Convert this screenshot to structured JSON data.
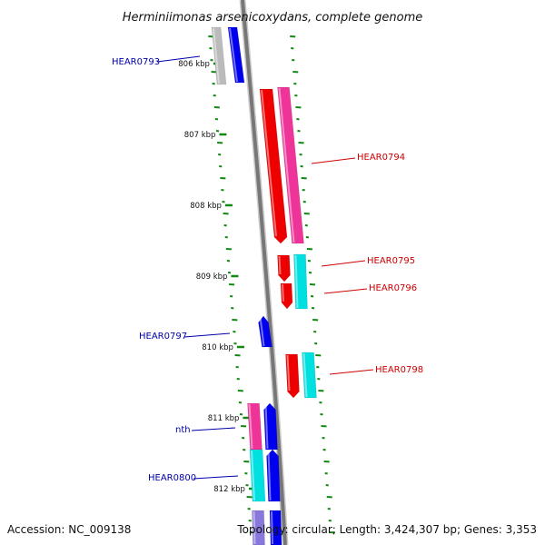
{
  "title": "Herminiimonas arsenicoxydans, complete genome",
  "footer": {
    "accession": "Accession: NC_009138",
    "topology": "Topology: circular; Length: 3,424,307 bp; Genes: 3,353"
  },
  "colors": {
    "backbone": "#777777",
    "tick": "#118811",
    "label_left": "#0000aa",
    "label_right": "#cc0000",
    "blue": "#0000ee",
    "red": "#ee0000",
    "magenta": "#ee3399",
    "cyan": "#00e0e0",
    "gray": "#bbbbbb",
    "purple": "#8877dd"
  },
  "kbp_labels": [
    "806 kbp",
    "807 kbp",
    "808 kbp",
    "809 kbp",
    "810 kbp",
    "811 kbp",
    "812 kbp"
  ],
  "gene_labels": [
    {
      "name": "HEAR0793",
      "side": "left"
    },
    {
      "name": "HEAR0794",
      "side": "right"
    },
    {
      "name": "HEAR0795",
      "side": "right"
    },
    {
      "name": "HEAR0796",
      "side": "right"
    },
    {
      "name": "HEAR0797",
      "side": "left"
    },
    {
      "name": "HEAR0798",
      "side": "right"
    },
    {
      "name": "nth",
      "side": "left"
    },
    {
      "name": "HEAR0800",
      "side": "left"
    }
  ]
}
